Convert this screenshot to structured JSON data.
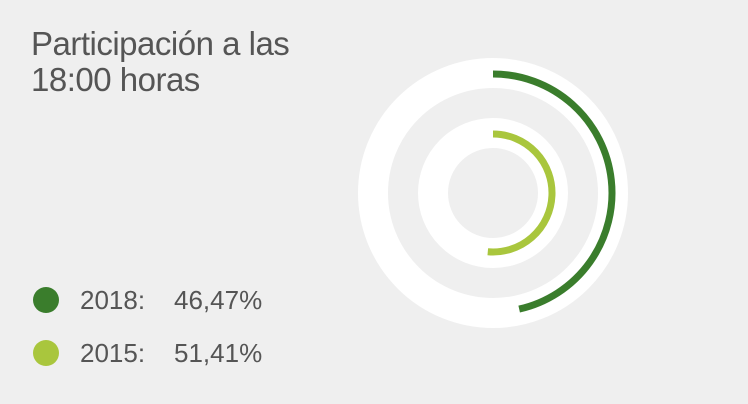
{
  "chart_data": {
    "type": "radial-bar",
    "title": "Participación a las 18:00 horas",
    "ylim": [
      0,
      100
    ],
    "series": [
      {
        "name": "2018:",
        "color": "#3a7d2c",
        "values": [
          46.47
        ],
        "value_labels": [
          "46,47%"
        ]
      },
      {
        "name": "2015:",
        "color": "#a9c63d",
        "values": [
          51.41
        ],
        "value_labels": [
          "51,41%"
        ]
      }
    ]
  }
}
